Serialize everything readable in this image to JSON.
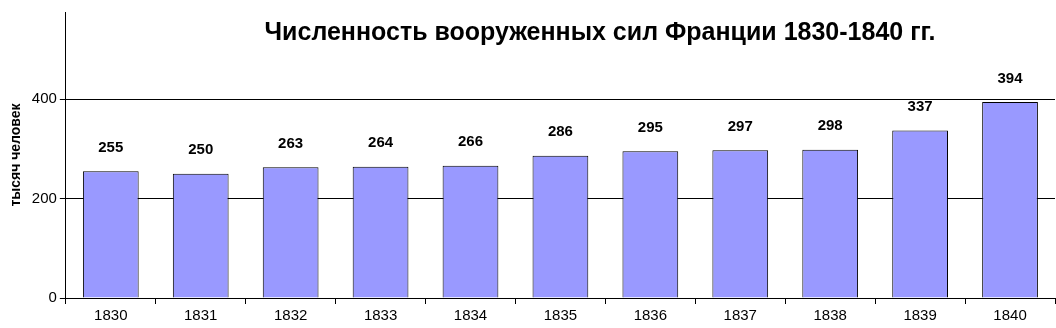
{
  "chart_data": {
    "type": "bar",
    "title": "Численность вооруженных сил Франции 1830-1840 гг.",
    "ylabel": "тысяч человек",
    "categories": [
      "1830",
      "1831",
      "1832",
      "1833",
      "1834",
      "1835",
      "1836",
      "1837",
      "1838",
      "1839",
      "1840"
    ],
    "values": [
      255,
      250,
      263,
      264,
      266,
      286,
      295,
      297,
      298,
      337,
      394
    ],
    "color": "#9999ff",
    "ylim": [
      0,
      575
    ],
    "yticks": [
      0,
      200,
      400
    ],
    "grid": "y",
    "data_labels": true,
    "legend": false
  }
}
